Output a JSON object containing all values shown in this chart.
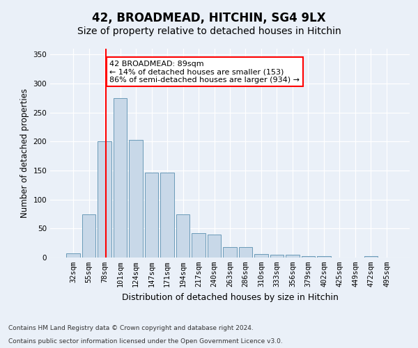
{
  "title1": "42, BROADMEAD, HITCHIN, SG4 9LX",
  "title2": "Size of property relative to detached houses in Hitchin",
  "xlabel": "Distribution of detached houses by size in Hitchin",
  "ylabel": "Number of detached properties",
  "categories": [
    "32sqm",
    "55sqm",
    "78sqm",
    "101sqm",
    "124sqm",
    "147sqm",
    "171sqm",
    "194sqm",
    "217sqm",
    "240sqm",
    "263sqm",
    "286sqm",
    "310sqm",
    "333sqm",
    "356sqm",
    "379sqm",
    "402sqm",
    "425sqm",
    "449sqm",
    "472sqm",
    "495sqm"
  ],
  "values": [
    7,
    75,
    200,
    275,
    203,
    147,
    147,
    75,
    42,
    40,
    18,
    18,
    6,
    5,
    5,
    3,
    2,
    0,
    0,
    2,
    0
  ],
  "bar_color": "#c8d8e8",
  "bar_edge_color": "#6a9ab8",
  "vline_x": 2.07,
  "vline_color": "red",
  "annotation_text": "42 BROADMEAD: 89sqm\n← 14% of detached houses are smaller (153)\n86% of semi-detached houses are larger (934) →",
  "annotation_box_color": "white",
  "annotation_box_edge": "red",
  "ylim": [
    0,
    360
  ],
  "yticks": [
    0,
    50,
    100,
    150,
    200,
    250,
    300,
    350
  ],
  "background_color": "#eaf0f8",
  "plot_bg_color": "#eaf0f8",
  "footer1": "Contains HM Land Registry data © Crown copyright and database right 2024.",
  "footer2": "Contains public sector information licensed under the Open Government Licence v3.0.",
  "title1_fontsize": 12,
  "title2_fontsize": 10,
  "xlabel_fontsize": 9,
  "ylabel_fontsize": 8.5,
  "tick_fontsize": 7.5,
  "footer_fontsize": 6.5,
  "annotation_fontsize": 8
}
